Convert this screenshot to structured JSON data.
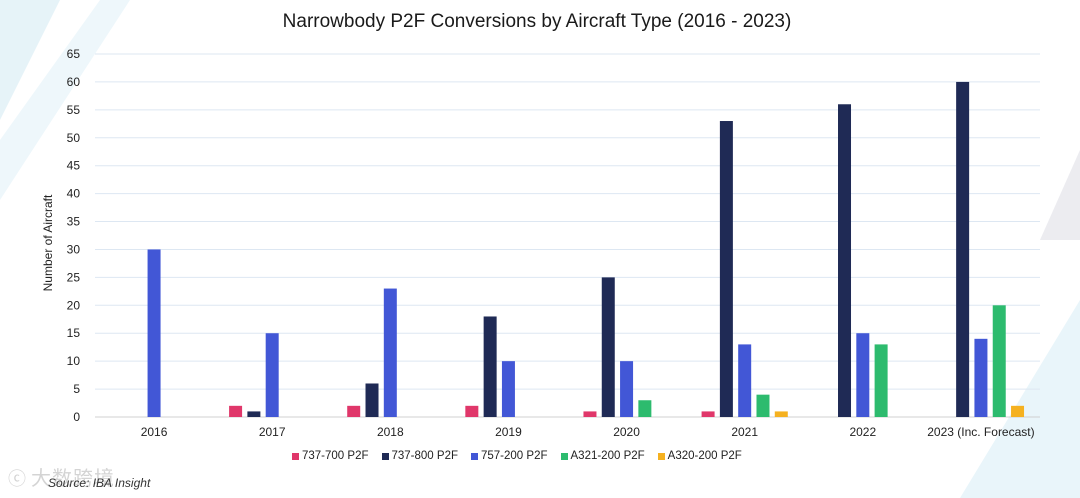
{
  "chart_data": {
    "type": "bar",
    "title": "Narrowbody P2F Conversions by Aircraft Type (2016 - 2023)",
    "xlabel": "",
    "ylabel": "Number of Aircraft",
    "ylim": [
      0,
      65
    ],
    "yticks": [
      0,
      5,
      10,
      15,
      20,
      25,
      30,
      35,
      40,
      45,
      50,
      55,
      60,
      65
    ],
    "grid": true,
    "legend_position": "bottom",
    "categories": [
      "2016",
      "2017",
      "2018",
      "2019",
      "2020",
      "2021",
      "2022",
      "2023 (Inc. Forecast)"
    ],
    "series": [
      {
        "name": "737-700 P2F",
        "color": "#e0376a",
        "values": [
          0,
          2,
          2,
          2,
          1,
          1,
          0,
          0
        ]
      },
      {
        "name": "737-800 P2F",
        "color": "#1f2a55",
        "values": [
          0,
          1,
          6,
          18,
          25,
          53,
          56,
          60
        ]
      },
      {
        "name": "757-200 P2F",
        "color": "#4257d6",
        "values": [
          30,
          15,
          23,
          10,
          10,
          13,
          15,
          14
        ]
      },
      {
        "name": "A321-200 P2F",
        "color": "#2dbb6e",
        "values": [
          0,
          0,
          0,
          0,
          3,
          4,
          13,
          20
        ]
      },
      {
        "name": "A320-200 P2F",
        "color": "#f5b120",
        "values": [
          0,
          0,
          0,
          0,
          0,
          1,
          0,
          2
        ]
      }
    ]
  },
  "source": "Source: IBA Insight",
  "watermark": "大数跨境"
}
